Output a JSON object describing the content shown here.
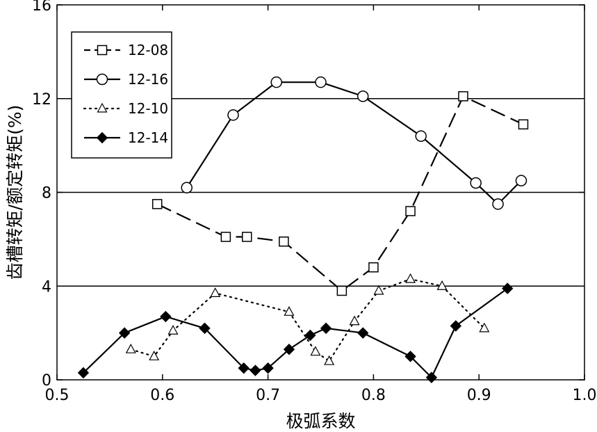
{
  "chart_data": {
    "type": "line",
    "xlabel": "极弧系数",
    "ylabel": "齿槽转矩/额定转矩(%)",
    "xlim": [
      0.5,
      1.0
    ],
    "ylim": [
      0,
      16
    ],
    "xticks": [
      "0.5",
      "0.6",
      "0.7",
      "0.8",
      "0.9",
      "1.0"
    ],
    "yticks": [
      "0",
      "4",
      "8",
      "12",
      "16"
    ],
    "grid": "horizontal",
    "legend_position": "top-left",
    "series": [
      {
        "name": "12-08",
        "line": "dashed",
        "marker": "open-square",
        "points": [
          [
            0.595,
            7.5
          ],
          [
            0.66,
            6.1
          ],
          [
            0.68,
            6.1
          ],
          [
            0.715,
            5.9
          ],
          [
            0.77,
            3.8
          ],
          [
            0.8,
            4.8
          ],
          [
            0.835,
            7.2
          ],
          [
            0.885,
            12.1
          ],
          [
            0.942,
            10.9
          ]
        ]
      },
      {
        "name": "12-16",
        "line": "solid",
        "marker": "open-circle",
        "points": [
          [
            0.623,
            8.2
          ],
          [
            0.667,
            11.3
          ],
          [
            0.708,
            12.7
          ],
          [
            0.75,
            12.7
          ],
          [
            0.79,
            12.1
          ],
          [
            0.845,
            10.4
          ],
          [
            0.897,
            8.4
          ],
          [
            0.918,
            7.5
          ],
          [
            0.94,
            8.5
          ]
        ]
      },
      {
        "name": "12-10",
        "line": "dotted",
        "marker": "open-triangle",
        "points": [
          [
            0.57,
            1.3
          ],
          [
            0.592,
            1.0
          ],
          [
            0.61,
            2.1
          ],
          [
            0.65,
            3.7
          ],
          [
            0.72,
            2.9
          ],
          [
            0.745,
            1.2
          ],
          [
            0.758,
            0.8
          ],
          [
            0.782,
            2.5
          ],
          [
            0.805,
            3.8
          ],
          [
            0.835,
            4.3
          ],
          [
            0.865,
            4.0
          ],
          [
            0.905,
            2.2
          ]
        ]
      },
      {
        "name": "12-14",
        "line": "solid",
        "marker": "filled-diamond",
        "points": [
          [
            0.525,
            0.3
          ],
          [
            0.564,
            2.0
          ],
          [
            0.603,
            2.7
          ],
          [
            0.64,
            2.2
          ],
          [
            0.677,
            0.5
          ],
          [
            0.688,
            0.4
          ],
          [
            0.7,
            0.5
          ],
          [
            0.72,
            1.3
          ],
          [
            0.74,
            1.9
          ],
          [
            0.755,
            2.2
          ],
          [
            0.79,
            2.0
          ],
          [
            0.835,
            1.0
          ],
          [
            0.855,
            0.1
          ],
          [
            0.878,
            2.3
          ],
          [
            0.927,
            3.9
          ]
        ]
      }
    ],
    "colors": {
      "stroke": "#000000",
      "background": "#ffffff"
    }
  }
}
